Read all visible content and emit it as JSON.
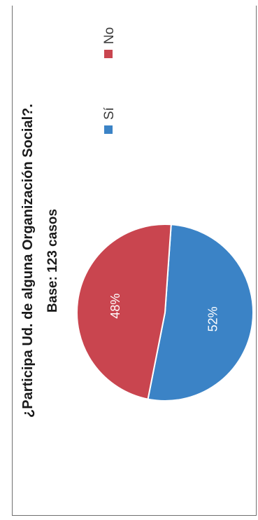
{
  "chart_data": {
    "type": "pie",
    "title": "¿Participa Ud. de alguna Organización Social?.",
    "subtitle": "Base: 123 casos",
    "categories": [
      "Sí",
      "No"
    ],
    "values": [
      52,
      48
    ],
    "value_labels": [
      "52%",
      "48%"
    ],
    "colors": [
      "#3b83c6",
      "#c9454f"
    ],
    "legend": "right"
  }
}
